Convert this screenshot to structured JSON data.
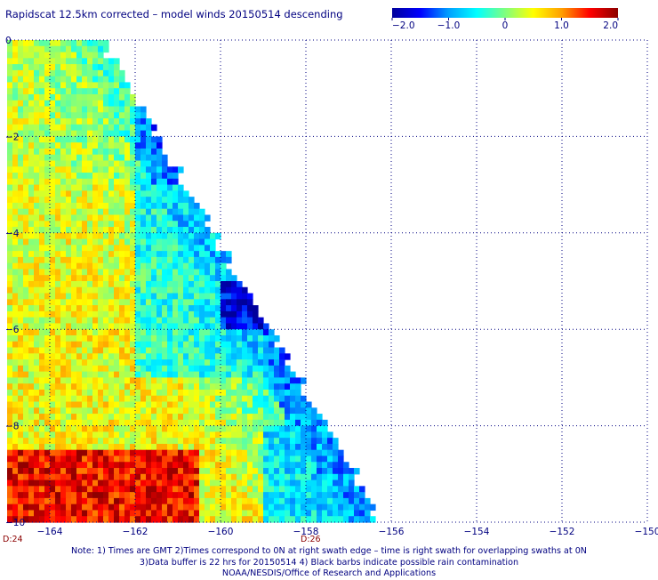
{
  "title": "Rapidscat 12.5km corrected – model winds 20150514 descending",
  "colorbar": {
    "labels": [
      "−2.0",
      "−1.0",
      "0",
      "1.0",
      "2.0"
    ],
    "min": -2.0,
    "max": 2.0,
    "colors": [
      "#00009b",
      "#0000ff",
      "#00a0ff",
      "#00ffff",
      "#7fff7f",
      "#ffff00",
      "#ff9f00",
      "#ff0000",
      "#8b0000"
    ]
  },
  "chart_data": {
    "type": "heatmap",
    "title": "Rapidscat 12.5km corrected – model winds 20150514 descending",
    "x_ticks": [
      -164,
      -162,
      -160,
      -158,
      -156,
      -154,
      -152,
      -150
    ],
    "x_tick_labels": [
      "−164",
      "−162",
      "−160",
      "−158",
      "−156",
      "−154",
      "−152",
      "−150"
    ],
    "y_ticks": [
      0,
      -2,
      -4,
      -6,
      -8,
      -10
    ],
    "y_tick_labels": [
      "0",
      "−2",
      "−4",
      "−6",
      "−8",
      "−10"
    ],
    "xlim": [
      -165,
      -150
    ],
    "ylim": [
      -10,
      0
    ],
    "grid": true,
    "value_range": [
      -2.0,
      2.0
    ],
    "swath_edge": {
      "lat0_lon": -162.8,
      "lat10_lon": -156.2
    },
    "regions": [
      {
        "name": "northwest",
        "lat": [
          -3,
          0
        ],
        "lon": [
          -165,
          -162
        ],
        "approx_value": 0.2
      },
      {
        "name": "west-central",
        "lat": [
          -6,
          -3
        ],
        "lon": [
          -165,
          -162
        ],
        "approx_value": 0.4
      },
      {
        "name": "interior",
        "lat": [
          -7,
          -3
        ],
        "lon": [
          -162,
          -159
        ],
        "approx_value": -0.6
      },
      {
        "name": "swath-edge-low",
        "lat": [
          -6,
          -5
        ],
        "lon": [
          -160,
          -158.5
        ],
        "approx_value": -2.0
      },
      {
        "name": "southwest-high",
        "lat": [
          -10,
          -8.5
        ],
        "lon": [
          -165,
          -160.5
        ],
        "approx_value": 2.0
      },
      {
        "name": "southeast",
        "lat": [
          -10,
          -8
        ],
        "lon": [
          -159,
          -156.2
        ],
        "approx_value": -0.9
      }
    ],
    "time_labels": [
      "D:24",
      "D:26"
    ],
    "time_label_lons": [
      -165,
      -158
    ]
  },
  "notes": [
    "Note: 1) Times are GMT 2)Times correspond to 0N at right swath edge – time is right swath for overlapping swaths at 0N",
    "3)Data buffer is 22 hrs for 20150514 4) Black barbs indicate possible rain contamination",
    "NOAA/NESDIS/Office of Research and Applications"
  ]
}
